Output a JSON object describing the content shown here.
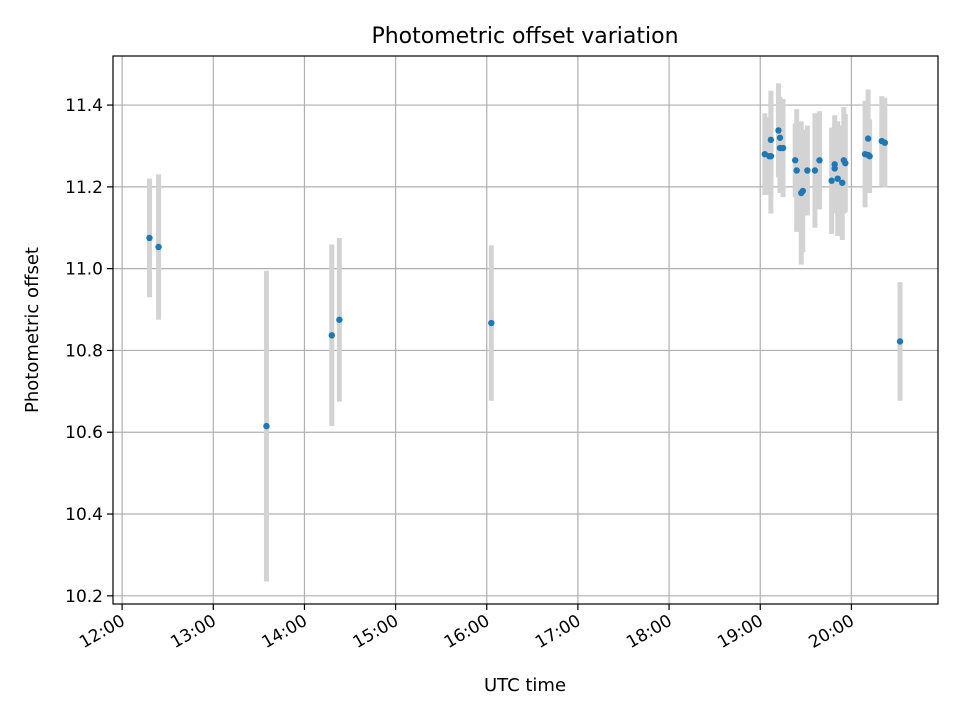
{
  "chart_data": {
    "type": "scatter",
    "title": "Photometric offset variation",
    "xlabel": "UTC time",
    "ylabel": "Photometric offset",
    "x_ticks": [
      "12:00",
      "13:00",
      "14:00",
      "15:00",
      "16:00",
      "17:00",
      "18:00",
      "19:00",
      "20:00"
    ],
    "y_ticks": [
      "10.2",
      "10.4",
      "10.6",
      "10.8",
      "11.0",
      "11.2",
      "11.4"
    ],
    "xlim": [
      "11:54",
      "20:57"
    ],
    "ylim": [
      10.18,
      11.52
    ],
    "grid": true,
    "colors": {
      "point": "#1f77b4",
      "errorbar": "#d3d3d3",
      "grid": "#b0b0b0"
    },
    "points": [
      {
        "x": "12:18",
        "y": 11.075,
        "err": 0.145
      },
      {
        "x": "12:24",
        "y": 11.053,
        "err": 0.178
      },
      {
        "x": "13:35",
        "y": 10.615,
        "err": 0.38
      },
      {
        "x": "14:18",
        "y": 10.837,
        "err": 0.222
      },
      {
        "x": "14:23",
        "y": 10.875,
        "err": 0.2
      },
      {
        "x": "16:03",
        "y": 10.867,
        "err": 0.19
      },
      {
        "x": "19:03",
        "y": 11.28,
        "err": 0.1
      },
      {
        "x": "19:06",
        "y": 11.275,
        "err": 0.095
      },
      {
        "x": "19:07",
        "y": 11.315,
        "err": 0.12
      },
      {
        "x": "19:07",
        "y": 11.275,
        "err": 0.14
      },
      {
        "x": "19:12",
        "y": 11.338,
        "err": 0.115
      },
      {
        "x": "19:13",
        "y": 11.32,
        "err": 0.1
      },
      {
        "x": "19:13",
        "y": 11.295,
        "err": 0.11
      },
      {
        "x": "19:15",
        "y": 11.295,
        "err": 0.12
      },
      {
        "x": "19:23",
        "y": 11.265,
        "err": 0.09
      },
      {
        "x": "19:24",
        "y": 11.24,
        "err": 0.15
      },
      {
        "x": "19:27",
        "y": 11.185,
        "err": 0.175
      },
      {
        "x": "19:28",
        "y": 11.19,
        "err": 0.15
      },
      {
        "x": "19:31",
        "y": 11.24,
        "err": 0.11
      },
      {
        "x": "19:36",
        "y": 11.24,
        "err": 0.14
      },
      {
        "x": "19:39",
        "y": 11.265,
        "err": 0.12
      },
      {
        "x": "19:47",
        "y": 11.215,
        "err": 0.13
      },
      {
        "x": "19:49",
        "y": 11.255,
        "err": 0.12
      },
      {
        "x": "19:49",
        "y": 11.245,
        "err": 0.11
      },
      {
        "x": "19:51",
        "y": 11.22,
        "err": 0.14
      },
      {
        "x": "19:54",
        "y": 11.21,
        "err": 0.14
      },
      {
        "x": "19:55",
        "y": 11.265,
        "err": 0.13
      },
      {
        "x": "19:56",
        "y": 11.258,
        "err": 0.12
      },
      {
        "x": "20:09",
        "y": 11.28,
        "err": 0.13
      },
      {
        "x": "20:11",
        "y": 11.278,
        "err": 0.09
      },
      {
        "x": "20:11",
        "y": 11.318,
        "err": 0.12
      },
      {
        "x": "20:12",
        "y": 11.275,
        "err": 0.09
      },
      {
        "x": "20:20",
        "y": 11.312,
        "err": 0.11
      },
      {
        "x": "20:22",
        "y": 11.308,
        "err": 0.11
      },
      {
        "x": "20:32",
        "y": 10.822,
        "err": 0.145
      }
    ]
  }
}
